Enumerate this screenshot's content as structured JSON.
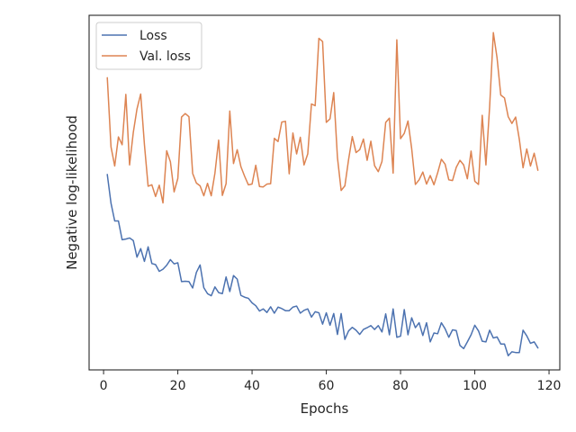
{
  "chart_data": {
    "type": "line",
    "title": "",
    "xlabel": "Epochs",
    "ylabel": "Negative log-likelihood",
    "xlim": [
      -3.9,
      122.9
    ],
    "ylim": [
      0,
      100
    ],
    "y_ticks_shown": false,
    "x_ticks": [
      0,
      20,
      40,
      60,
      80,
      100,
      120
    ],
    "x_tick_labels": [
      "0",
      "20",
      "40",
      "60",
      "80",
      "100",
      "120"
    ],
    "grid": false,
    "legend_position": "top-left",
    "x": [
      1,
      2,
      3,
      4,
      5,
      6,
      7,
      8,
      9,
      10,
      11,
      12,
      13,
      14,
      15,
      16,
      17,
      18,
      19,
      20,
      21,
      22,
      23,
      24,
      25,
      26,
      27,
      28,
      29,
      30,
      31,
      32,
      33,
      34,
      35,
      36,
      37,
      38,
      39,
      40,
      41,
      42,
      43,
      44,
      45,
      46,
      47,
      48,
      49,
      50,
      51,
      52,
      53,
      54,
      55,
      56,
      57,
      58,
      59,
      60,
      61,
      62,
      63,
      64,
      65,
      66,
      67,
      68,
      69,
      70,
      71,
      72,
      73,
      74,
      75,
      76,
      77,
      78,
      79,
      80,
      81,
      82,
      83,
      84,
      85,
      86,
      87,
      88,
      89,
      90,
      91,
      92,
      93,
      94,
      95,
      96,
      97,
      98,
      99,
      100,
      101,
      102,
      103,
      104,
      105,
      106,
      107,
      108,
      109,
      110,
      111,
      112,
      113,
      114,
      115,
      116,
      117
    ],
    "series": [
      {
        "name": "Loss",
        "color": "#4c72b0",
        "values": [
          55.1,
          47.0,
          42.0,
          42.0,
          36.7,
          36.9,
          37.2,
          36.5,
          31.8,
          34.2,
          30.6,
          34.7,
          30.0,
          29.7,
          27.8,
          28.4,
          29.5,
          31.1,
          29.9,
          30.2,
          24.9,
          25.0,
          24.9,
          23.1,
          27.5,
          29.6,
          23.2,
          21.5,
          20.9,
          23.4,
          21.8,
          21.5,
          26.2,
          22.1,
          26.6,
          25.6,
          21.0,
          20.5,
          20.2,
          18.9,
          18.1,
          16.6,
          17.2,
          16.2,
          17.8,
          16.0,
          17.7,
          17.3,
          16.7,
          16.7,
          17.7,
          18.0,
          16.0,
          16.8,
          17.2,
          14.9,
          16.4,
          16.1,
          12.9,
          16.1,
          12.6,
          15.9,
          10.0,
          15.9,
          8.6,
          11.0,
          12.0,
          11.2,
          10.0,
          11.4,
          11.9,
          12.5,
          11.4,
          12.5,
          10.7,
          15.8,
          9.9,
          17.2,
          9.2,
          9.5,
          17.0,
          9.9,
          14.7,
          11.9,
          13.3,
          9.7,
          13.3,
          7.9,
          10.4,
          10.2,
          13.3,
          11.6,
          9.2,
          11.3,
          11.1,
          6.9,
          6.0,
          7.9,
          9.9,
          12.6,
          11.0,
          8.1,
          7.9,
          11.2,
          9.0,
          9.3,
          7.3,
          7.3,
          4.0,
          5.1,
          4.9,
          4.9,
          11.2,
          9.6,
          7.5,
          7.9,
          6.2
        ]
      },
      {
        "name": "Val. loss",
        "color": "#dd8452",
        "values": [
          82.4,
          62.9,
          57.5,
          65.7,
          63.5,
          77.7,
          57.8,
          66.9,
          73.6,
          77.8,
          63.6,
          51.8,
          52.2,
          48.9,
          52.1,
          47.1,
          61.8,
          58.7,
          50.2,
          54.0,
          71.3,
          72.3,
          71.4,
          55.4,
          52.7,
          51.9,
          49.1,
          52.6,
          49.1,
          55.5,
          64.8,
          49.2,
          52.5,
          73.0,
          58.2,
          62.1,
          57.3,
          54.6,
          52.2,
          52.4,
          57.7,
          51.7,
          51.6,
          52.4,
          52.5,
          65.3,
          64.4,
          69.9,
          70.1,
          55.3,
          66.8,
          60.9,
          65.6,
          57.8,
          60.9,
          75.0,
          74.5,
          93.5,
          92.6,
          69.8,
          70.8,
          78.2,
          59.9,
          50.6,
          51.9,
          59.3,
          65.8,
          61.3,
          62.1,
          65.1,
          59.1,
          64.5,
          57.6,
          55.9,
          58.8,
          69.8,
          71.0,
          55.5,
          93.1,
          65.2,
          66.7,
          70.2,
          62.4,
          52.3,
          53.6,
          55.8,
          52.4,
          54.8,
          52.2,
          55.6,
          59.4,
          58.0,
          53.6,
          53.4,
          57.1,
          59.1,
          57.8,
          53.9,
          61.7,
          53.2,
          52.3,
          71.8,
          57.8,
          74.2,
          95.1,
          88.0,
          77.5,
          76.7,
          71.4,
          69.5,
          71.3,
          65.0,
          57.0,
          62.3,
          57.5,
          61.1,
          56.3
        ]
      }
    ]
  }
}
